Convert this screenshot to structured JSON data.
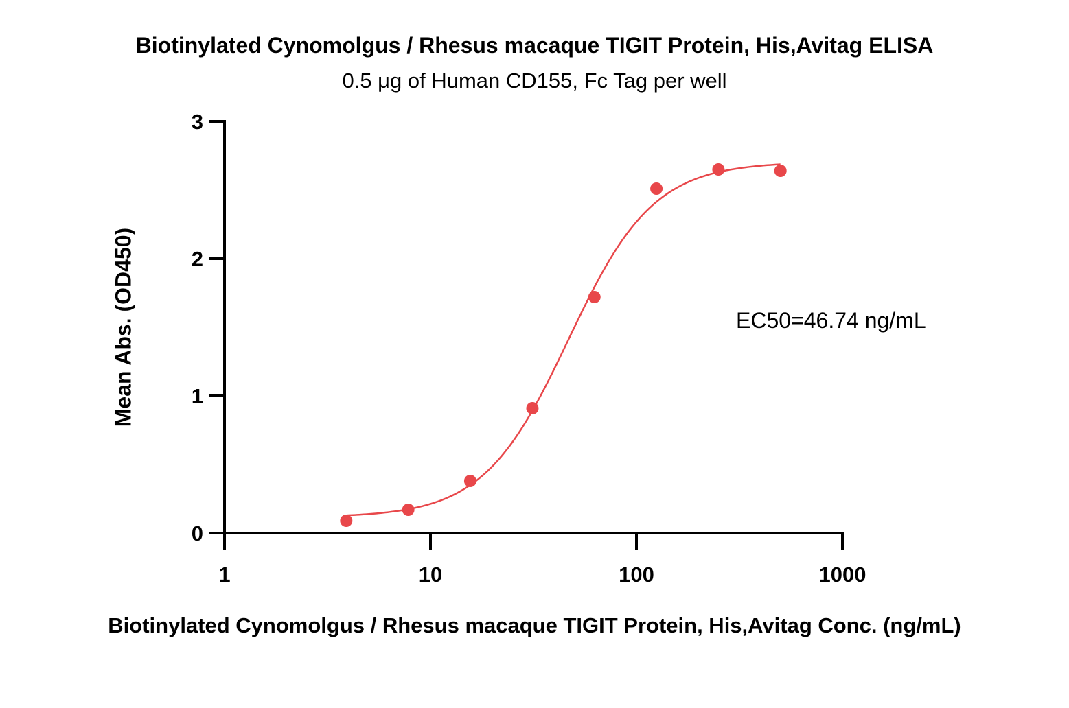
{
  "chart_data": {
    "type": "scatter",
    "title": "Biotinylated Cynomolgus / Rhesus macaque TIGIT Protein, His,Avitag ELISA",
    "subtitle": "0.5 μg of Human CD155, Fc Tag per well",
    "xlabel": "Biotinylated Cynomolgus / Rhesus macaque TIGIT Protein, His,Avitag Conc. (ng/mL)",
    "ylabel": "Mean Abs. (OD450)",
    "x_scale": "log",
    "xlim": [
      1,
      1000
    ],
    "ylim": [
      0,
      3
    ],
    "x_ticks": [
      1,
      10,
      100,
      1000
    ],
    "x_tick_labels": [
      "1",
      "10",
      "100",
      "1000"
    ],
    "y_ticks": [
      0,
      1,
      2,
      3
    ],
    "y_tick_labels": [
      "0",
      "1",
      "2",
      "3"
    ],
    "grid": false,
    "series": [
      {
        "color": "#e8474a",
        "x": [
          3.9,
          7.8,
          15.6,
          31.25,
          62.5,
          125,
          250,
          500
        ],
        "y": [
          0.09,
          0.17,
          0.38,
          0.91,
          1.72,
          2.51,
          2.65,
          2.64
        ]
      }
    ],
    "fit": {
      "type": "4PL",
      "bottom": 0.115,
      "top": 2.705,
      "ec50": 46.74,
      "hill": 2.1,
      "x_range": [
        3.9,
        500
      ],
      "color": "#e8474a"
    },
    "annotation": "EC50=46.74 ng/mL"
  }
}
